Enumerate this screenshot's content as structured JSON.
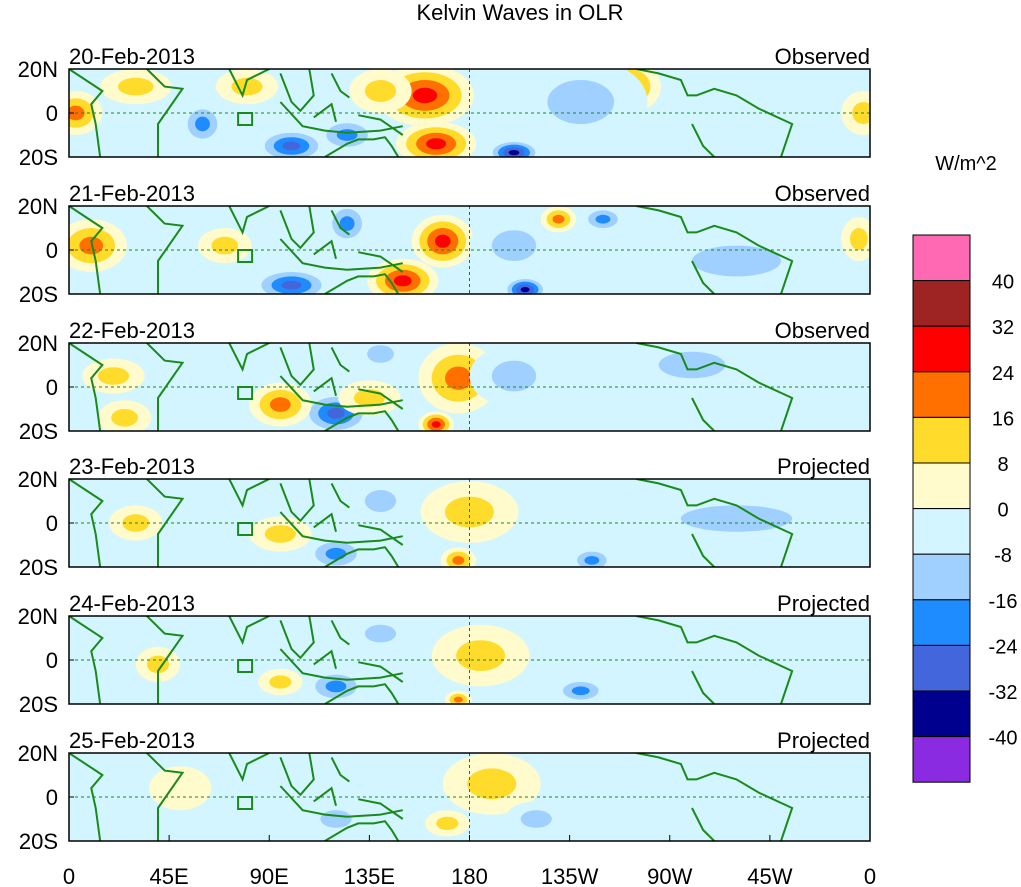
{
  "chart_data": {
    "type": "heatmap",
    "title": "Kelvin Waves in OLR",
    "units_label": "W/m^2",
    "y_ticks": [
      "20N",
      "0",
      "20S"
    ],
    "x_ticks": [
      "0",
      "45E",
      "90E",
      "135E",
      "180",
      "135W",
      "90W",
      "45W",
      "0"
    ],
    "lon_range": [
      0,
      360
    ],
    "lat_range": [
      -20,
      20
    ],
    "colorbar": {
      "labels": [
        "40",
        "32",
        "24",
        "16",
        "8",
        "0",
        "-8",
        "-16",
        "-24",
        "-32",
        "-40"
      ],
      "colors": [
        "#ff69b4",
        "#9e2424",
        "#ff0000",
        "#ff7000",
        "#ffdc2c",
        "#fffbcc",
        "#d2f5ff",
        "#9fd0ff",
        "#1e8cff",
        "#4466dd",
        "#00008f",
        "#8a2be2"
      ]
    },
    "panels": [
      {
        "date": "20-Feb-2013",
        "type": "Observed",
        "blobs": [
          [
            160,
            8,
            30,
            22,
            14
          ],
          [
            165,
            -14,
            30,
            18,
            10
          ],
          [
            3,
            0,
            18,
            12,
            10
          ],
          [
            252,
            12,
            18,
            14,
            12
          ],
          [
            357,
            0,
            16,
            10,
            10
          ],
          [
            200,
            -18,
            -36,
            12,
            6
          ],
          [
            100,
            -15,
            -28,
            16,
            8
          ],
          [
            125,
            -10,
            -20,
            14,
            8
          ],
          [
            60,
            -5,
            -20,
            10,
            10
          ],
          [
            215,
            10,
            -20,
            10,
            8
          ],
          [
            230,
            5,
            -12,
            30,
            20
          ],
          [
            80,
            12,
            10,
            14,
            8
          ],
          [
            140,
            10,
            10,
            14,
            10
          ],
          [
            30,
            12,
            10,
            16,
            8
          ]
        ]
      },
      {
        "date": "21-Feb-2013",
        "type": "Observed",
        "blobs": [
          [
            168,
            4,
            30,
            14,
            12
          ],
          [
            150,
            -14,
            30,
            16,
            10
          ],
          [
            10,
            2,
            18,
            16,
            12
          ],
          [
            205,
            -18,
            -36,
            10,
            6
          ],
          [
            100,
            -16,
            -28,
            18,
            8
          ],
          [
            125,
            12,
            -24,
            10,
            10
          ],
          [
            200,
            2,
            -12,
            20,
            14
          ],
          [
            240,
            14,
            -24,
            10,
            6
          ],
          [
            220,
            14,
            18,
            8,
            6
          ],
          [
            70,
            2,
            12,
            12,
            8
          ],
          [
            300,
            -5,
            -10,
            40,
            14
          ],
          [
            355,
            5,
            12,
            8,
            10
          ]
        ]
      },
      {
        "date": "22-Feb-2013",
        "type": "Observed",
        "blobs": [
          [
            175,
            4,
            18,
            18,
            16
          ],
          [
            165,
            -17,
            28,
            8,
            6
          ],
          [
            20,
            5,
            16,
            14,
            8
          ],
          [
            25,
            -14,
            16,
            12,
            8
          ],
          [
            120,
            -12,
            -28,
            16,
            10
          ],
          [
            140,
            15,
            -16,
            12,
            8
          ],
          [
            95,
            -8,
            18,
            14,
            10
          ],
          [
            200,
            5,
            -10,
            20,
            14
          ],
          [
            280,
            10,
            -10,
            30,
            12
          ],
          [
            135,
            -5,
            10,
            14,
            8
          ]
        ]
      },
      {
        "date": "23-Feb-2013",
        "type": "Projected",
        "blobs": [
          [
            180,
            5,
            14,
            22,
            14
          ],
          [
            175,
            -17,
            24,
            8,
            6
          ],
          [
            30,
            0,
            16,
            12,
            8
          ],
          [
            120,
            -14,
            -24,
            14,
            8
          ],
          [
            235,
            -17,
            -24,
            10,
            6
          ],
          [
            140,
            10,
            -12,
            14,
            10
          ],
          [
            300,
            2,
            -10,
            50,
            12
          ],
          [
            95,
            -5,
            10,
            14,
            8
          ]
        ]
      },
      {
        "date": "24-Feb-2013",
        "type": "Projected",
        "blobs": [
          [
            185,
            2,
            10,
            22,
            14
          ],
          [
            175,
            -18,
            24,
            6,
            4
          ],
          [
            40,
            -2,
            12,
            10,
            8
          ],
          [
            120,
            -12,
            -20,
            14,
            8
          ],
          [
            230,
            -14,
            -20,
            12,
            6
          ],
          [
            140,
            12,
            -10,
            14,
            8
          ],
          [
            300,
            0,
            -8,
            60,
            14
          ],
          [
            95,
            -10,
            12,
            10,
            6
          ]
        ]
      },
      {
        "date": "25-Feb-2013",
        "type": "Projected",
        "blobs": [
          [
            190,
            6,
            10,
            22,
            14
          ],
          [
            170,
            -12,
            10,
            10,
            6
          ],
          [
            210,
            -10,
            -16,
            14,
            8
          ],
          [
            120,
            -10,
            -12,
            14,
            8
          ],
          [
            300,
            0,
            -8,
            60,
            14
          ],
          [
            50,
            4,
            8,
            14,
            10
          ]
        ]
      }
    ]
  }
}
